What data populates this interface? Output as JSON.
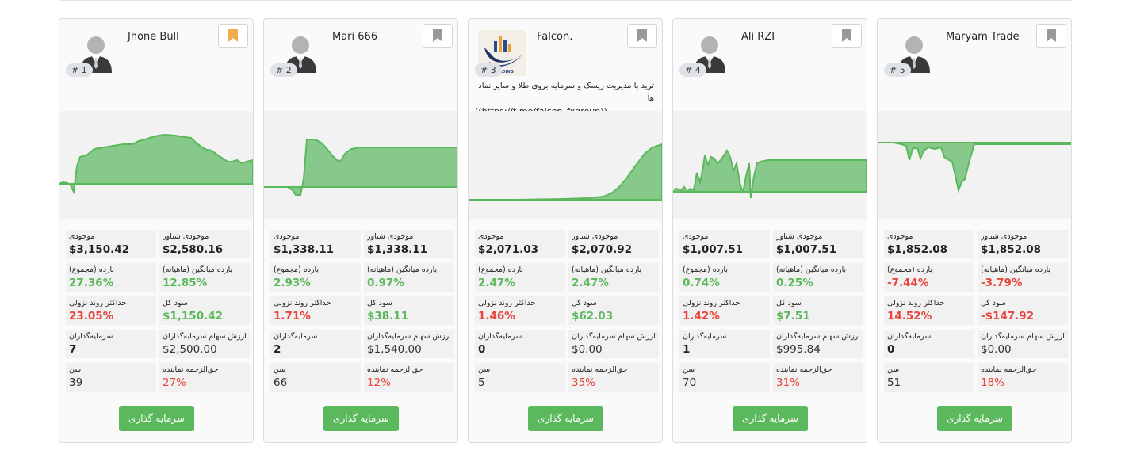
{
  "labels": {
    "balance": "موجودی",
    "equity": "موجودی شناور",
    "return_total": "بازده (مجموع)",
    "return_monthly": "بازده میانگین (ماهیانه)",
    "max_drawdown": "حداکثر روند نزولی",
    "total_profit": "سود کل",
    "investors": "سرمایه‌گذاران",
    "investor_shares": "ارزش سهام سرمایه‌گذاران",
    "age": "سن",
    "fee": "حق‌الزحمه نماینده",
    "invest_button": "سرمایه گذاری"
  },
  "colors": {
    "accent": "#5cb85c",
    "chart_fill": "#86c98a",
    "chart_line": "#5cb85c",
    "negative": "#e8453c",
    "bookmark_active": "#f0ad4e",
    "bookmark_inactive": "#999999"
  },
  "cards": [
    {
      "rank": "# 1",
      "name": "Jhone Bull",
      "bookmark_active": true,
      "avatar": "person-avatar-icon",
      "balance": "$3,150.42",
      "equity": "$2,580.16",
      "return_total": "27.36%",
      "return_monthly": "12.85%",
      "max_drawdown": "23.05%",
      "total_profit": "$1,150.42",
      "investors": "7",
      "investor_shares": "$2,500.00",
      "age": "39",
      "fee": "27%",
      "profit_color": "green",
      "return_color": "green"
    },
    {
      "rank": "# 2",
      "name": "Mari 666",
      "bookmark_active": false,
      "avatar": "person-avatar-icon",
      "balance": "$1,338.11",
      "equity": "$1,338.11",
      "return_total": "2.93%",
      "return_monthly": "0.97%",
      "max_drawdown": "1.71%",
      "total_profit": "$38.11",
      "investors": "2",
      "investor_shares": "$1,540.00",
      "age": "66",
      "fee": "12%",
      "profit_color": "green",
      "return_color": "green"
    },
    {
      "rank": "# 3",
      "name": "Falcon.",
      "bookmark_active": false,
      "avatar": "falcon-logo",
      "logo_text": "TRADING",
      "description": "ترید با مدیریت ریسک و سرمایه بروی طلا و سایر نماد ها",
      "link": "((https://t.me/falcon_fxgroup))",
      "balance": "$2,071.03",
      "equity": "$2,070.92",
      "return_total": "2.47%",
      "return_monthly": "2.47%",
      "max_drawdown": "1.46%",
      "total_profit": "$62.03",
      "investors": "0",
      "investor_shares": "$0.00",
      "age": "5",
      "fee": "35%",
      "profit_color": "green",
      "return_color": "green"
    },
    {
      "rank": "# 4",
      "name": "Ali RZI",
      "bookmark_active": false,
      "avatar": "person-avatar-icon",
      "balance": "$1,007.51",
      "equity": "$1,007.51",
      "return_total": "0.74%",
      "return_monthly": "0.25%",
      "max_drawdown": "1.42%",
      "total_profit": "$7.51",
      "investors": "1",
      "investor_shares": "$995.84",
      "age": "70",
      "fee": "31%",
      "profit_color": "green",
      "return_color": "green"
    },
    {
      "rank": "# 5",
      "name": "Maryam Trade",
      "bookmark_active": false,
      "avatar": "person-avatar-icon",
      "balance": "$1,852.08",
      "equity": "$1,852.08",
      "return_total": "-7.44%",
      "return_monthly": "-3.79%",
      "max_drawdown": "14.52%",
      "total_profit": "-$147.92",
      "investors": "0",
      "investor_shares": "$0.00",
      "age": "51",
      "fee": "18%",
      "profit_color": "red",
      "return_color": "red"
    }
  ]
}
